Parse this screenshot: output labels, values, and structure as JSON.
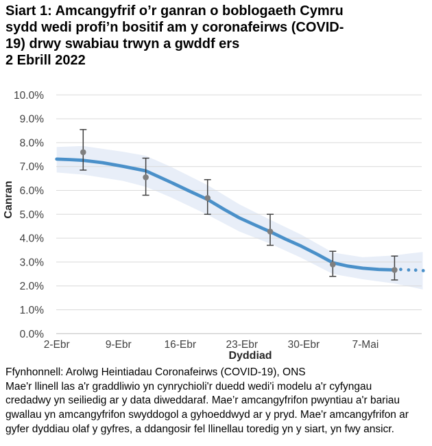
{
  "title": {
    "lines": [
      "Siart 1: Amcangyfrif o’r ganran o boblogaeth Cymru",
      "sydd wedi profi’n bositif am y coronafeirws (COVID-",
      "19) drwy swabiau trwyn a gwddf ers",
      "2 Ebrill 2022"
    ]
  },
  "chart_data": {
    "type": "line",
    "title": "Siart 1: Amcangyfrif o’r ganran o boblogaeth Cymru sydd wedi profi’n bositif am y coronafeirws (COVID-19) drwy swabiau trwyn a gwddf ers 2 Ebrill 2022",
    "xlabel": "Dyddiad",
    "ylabel": "Canran",
    "ylim": [
      0,
      10
    ],
    "x_range_days_from_2_April": [
      0,
      41.5
    ],
    "grid": "horizontal",
    "legend": "none",
    "yticks": [
      {
        "value": 0,
        "label": "0.0%"
      },
      {
        "value": 1,
        "label": "1.0%"
      },
      {
        "value": 2,
        "label": "2.0%"
      },
      {
        "value": 3,
        "label": "3.0%"
      },
      {
        "value": 4,
        "label": "4.0%"
      },
      {
        "value": 5,
        "label": "5.0%"
      },
      {
        "value": 6,
        "label": "6.0%"
      },
      {
        "value": 7,
        "label": "7.0%"
      },
      {
        "value": 8,
        "label": "8.0%"
      },
      {
        "value": 9,
        "label": "9.0%"
      },
      {
        "value": 10,
        "label": "10.0%"
      }
    ],
    "xticks": [
      {
        "day": 0,
        "label": "2-Ebr"
      },
      {
        "day": 7,
        "label": "9-Ebr"
      },
      {
        "day": 14,
        "label": "16-Ebr"
      },
      {
        "day": 21,
        "label": "23-Ebr"
      },
      {
        "day": 28,
        "label": "30-Ebr"
      },
      {
        "day": 35,
        "label": "7-Mai"
      }
    ],
    "trend_line": {
      "name": "duedd wedi'i modelu (llinell las)",
      "points": [
        [
          0,
          7.31
        ],
        [
          1.5,
          7.29
        ],
        [
          3,
          7.26
        ],
        [
          5.2,
          7.16
        ],
        [
          7.5,
          7.01
        ],
        [
          10.1,
          6.82
        ],
        [
          13,
          6.33
        ],
        [
          15,
          5.98
        ],
        [
          17.1,
          5.62
        ],
        [
          19,
          5.2
        ],
        [
          20.7,
          4.85
        ],
        [
          22.5,
          4.55
        ],
        [
          24.2,
          4.27
        ],
        [
          26,
          3.95
        ],
        [
          27.7,
          3.67
        ],
        [
          29.5,
          3.33
        ],
        [
          31.3,
          2.97
        ],
        [
          33,
          2.83
        ],
        [
          34.7,
          2.74
        ],
        [
          36.5,
          2.69
        ],
        [
          38.3,
          2.67
        ]
      ]
    },
    "trend_dotted": {
      "name": "dyddiau olaf y gyfres (llinell doredig)",
      "points": [
        [
          39.0,
          2.69
        ],
        [
          39.9,
          2.67
        ],
        [
          40.7,
          2.66
        ],
        [
          41.55,
          2.64
        ]
      ]
    },
    "confidence_band": {
      "name": "cyfyngau credadwy (graddliwio)",
      "points_day_lo_hi": [
        [
          0,
          6.75,
          7.82
        ],
        [
          3,
          6.66,
          7.86
        ],
        [
          7.5,
          6.4,
          7.62
        ],
        [
          10.1,
          6.15,
          7.45
        ],
        [
          13,
          5.7,
          6.98
        ],
        [
          17.1,
          4.98,
          6.22
        ],
        [
          20.7,
          4.28,
          5.42
        ],
        [
          24.2,
          3.77,
          4.77
        ],
        [
          27.7,
          3.18,
          4.15
        ],
        [
          31.3,
          2.5,
          3.4
        ],
        [
          34.7,
          2.28,
          3.2
        ],
        [
          38.3,
          2.1,
          3.28
        ],
        [
          40,
          1.97,
          3.36
        ],
        [
          41.5,
          1.85,
          3.42
        ]
      ]
    },
    "estimates": {
      "name": "amcangyfrifon pwyntiau swyddogol gyda bariau gwallau",
      "points": [
        {
          "date": "5-Ebr",
          "day": 3.0,
          "value": 7.6,
          "lo": 6.85,
          "hi": 8.55
        },
        {
          "date": "12-Ebr",
          "day": 10.1,
          "value": 6.55,
          "lo": 5.8,
          "hi": 7.35
        },
        {
          "date": "19-Ebr",
          "day": 17.1,
          "value": 5.68,
          "lo": 5.0,
          "hi": 6.45
        },
        {
          "date": "26-Ebr",
          "day": 24.2,
          "value": 4.28,
          "lo": 3.7,
          "hi": 5.0
        },
        {
          "date": "3-Mai",
          "day": 31.3,
          "value": 2.9,
          "lo": 2.4,
          "hi": 3.45
        },
        {
          "date": "10-Mai",
          "day": 38.3,
          "value": 2.67,
          "lo": 2.25,
          "hi": 3.25
        }
      ]
    }
  },
  "footnote": {
    "lines": [
      "Ffynhonnell: Arolwg Heintiadau Coronafeirws (COVID-19), ONS",
      "Mae'r llinell las a'r graddliwio yn cynrychioli'r duedd wedi'i modelu a'r cyfyngau",
      "credadwy yn seiliedig ar y data diweddaraf. Mae’r amcangyfrifon pwyntiau a'r bariau",
      "gwallau yn amcangyfrifon swyddogol a gyhoeddwyd ar y pryd. Mae'r amcangyfrifon ar",
      "gyfer dyddiau olaf y gyfres, a ddangosir fel llinellau toredig yn y siart, yn fwy ansicr."
    ]
  },
  "colors": {
    "trend": "#4a90c9",
    "band": "#e8eef8",
    "point": "#7f7f7f",
    "error_bar": "#404040",
    "grid": "#d9d9d9",
    "axis_line": "#bfbfbf",
    "title_text": "#000000",
    "tick_text": "#3f3f3f"
  }
}
